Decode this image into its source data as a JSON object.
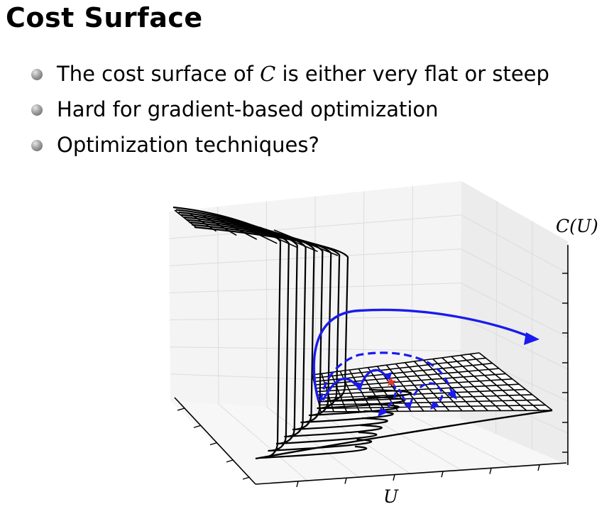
{
  "slide": {
    "title": "Cost Surface",
    "bullets": [
      {
        "before": "The cost surface of ",
        "math": "C",
        "after": " is either very flat or steep"
      },
      {
        "text": "Hard for gradient-based optimization"
      },
      {
        "text": "Optimization techniques?"
      }
    ]
  },
  "figure": {
    "z_axis_label": "C(U)",
    "x_axis_label": "U",
    "trajectory_color": "#1a1aee",
    "minimum_marker_color": "#e53a1f",
    "grid_color": "#dcdcdc",
    "pane_color": "#f1f1f1"
  }
}
